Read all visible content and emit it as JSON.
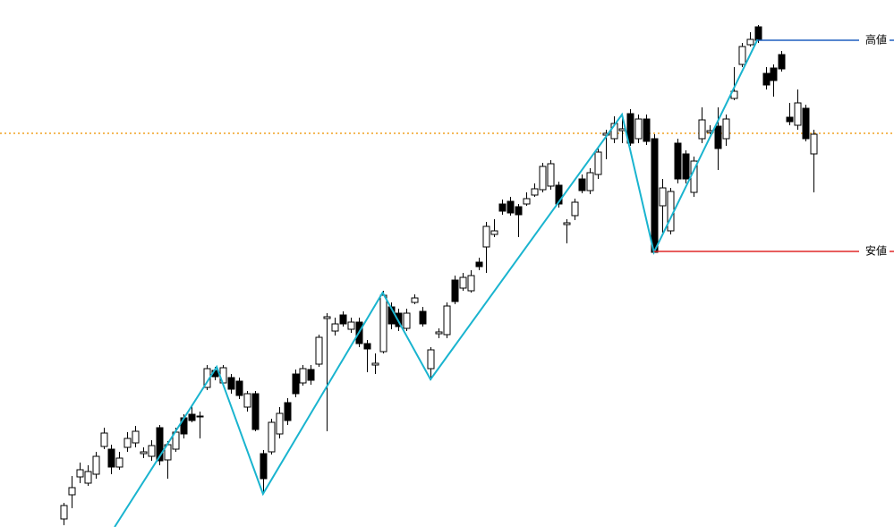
{
  "chart_data": {
    "type": "candlestick",
    "ylim": [
      0,
      589
    ],
    "up_color": "#ffffff",
    "down_color": "#000000",
    "ohlc": [
      [
        9,
        27,
        2,
        24
      ],
      [
        36,
        57,
        21,
        44
      ],
      [
        56,
        72,
        49,
        64
      ],
      [
        49,
        69,
        46,
        62
      ],
      [
        59,
        84,
        54,
        79
      ],
      [
        90,
        111,
        87,
        105
      ],
      [
        87,
        92,
        59,
        67
      ],
      [
        67,
        84,
        64,
        77
      ],
      [
        89,
        106,
        84,
        99
      ],
      [
        94,
        113,
        89,
        107
      ],
      [
        82,
        89,
        77,
        84
      ],
      [
        79,
        97,
        74,
        91
      ],
      [
        111,
        114,
        69,
        74
      ],
      [
        75,
        96,
        54,
        92
      ],
      [
        87,
        111,
        84,
        106
      ],
      [
        122,
        126,
        99,
        104
      ],
      [
        126,
        137,
        117,
        119
      ],
      [
        124,
        129,
        99,
        124
      ],
      [
        156,
        181,
        153,
        177
      ],
      [
        175,
        179,
        164,
        168
      ],
      [
        161,
        181,
        158,
        178
      ],
      [
        167,
        171,
        149,
        154
      ],
      [
        163,
        167,
        143,
        147
      ],
      [
        134,
        152,
        129,
        149
      ],
      [
        149,
        152,
        107,
        109
      ],
      [
        82,
        86,
        37,
        54
      ],
      [
        84,
        121,
        81,
        117
      ],
      [
        104,
        134,
        99,
        127
      ],
      [
        139,
        144,
        114,
        119
      ],
      [
        171,
        176,
        145,
        149
      ],
      [
        161,
        181,
        158,
        177
      ],
      [
        176,
        181,
        159,
        164
      ],
      [
        182,
        215,
        179,
        212
      ],
      [
        233,
        239,
        107,
        235
      ],
      [
        219,
        234,
        214,
        227
      ],
      [
        237,
        241,
        224,
        227
      ],
      [
        221,
        234,
        217,
        229
      ],
      [
        229,
        234,
        201,
        205
      ],
      [
        205,
        209,
        173,
        199
      ],
      [
        181,
        194,
        171,
        183
      ],
      [
        196,
        264,
        194,
        259
      ],
      [
        246,
        251,
        221,
        227
      ],
      [
        239,
        244,
        219,
        224
      ],
      [
        222,
        244,
        219,
        239
      ],
      [
        251,
        260,
        249,
        256
      ],
      [
        241,
        246,
        224,
        227
      ],
      [
        177,
        201,
        164,
        198
      ],
      [
        216,
        222,
        211,
        218
      ],
      [
        215,
        251,
        211,
        247
      ],
      [
        276,
        281,
        249,
        252
      ],
      [
        267,
        284,
        264,
        279
      ],
      [
        264,
        287,
        262,
        281
      ],
      [
        296,
        301,
        287,
        291
      ],
      [
        313,
        341,
        284,
        336
      ],
      [
        327,
        344,
        324,
        331
      ],
      [
        361,
        366,
        349,
        353
      ],
      [
        364,
        369,
        348,
        351
      ],
      [
        358,
        361,
        324,
        349
      ],
      [
        361,
        374,
        359,
        367
      ],
      [
        371,
        384,
        369,
        378
      ],
      [
        377,
        407,
        374,
        403
      ],
      [
        381,
        410,
        377,
        406
      ],
      [
        382,
        386,
        357,
        361
      ],
      [
        338,
        344,
        317,
        340
      ],
      [
        348,
        367,
        343,
        363
      ],
      [
        389,
        394,
        373,
        376
      ],
      [
        376,
        401,
        372,
        396
      ],
      [
        394,
        423,
        389,
        419
      ],
      [
        438,
        444,
        411,
        440
      ],
      [
        434,
        459,
        429,
        451
      ],
      [
        443,
        461,
        429,
        445
      ],
      [
        462,
        467,
        426,
        429
      ],
      [
        434,
        461,
        429,
        456
      ],
      [
        456,
        461,
        427,
        431
      ],
      [
        434,
        439,
        307,
        307
      ],
      [
        359,
        389,
        329,
        379
      ],
      [
        331,
        379,
        327,
        375
      ],
      [
        429,
        434,
        384,
        389
      ],
      [
        417,
        421,
        384,
        389
      ],
      [
        374,
        414,
        369,
        409
      ],
      [
        434,
        469,
        429,
        455
      ],
      [
        441,
        449,
        439,
        443
      ],
      [
        448,
        469,
        399,
        423
      ],
      [
        434,
        461,
        426,
        456
      ],
      [
        479,
        514,
        477,
        487
      ],
      [
        517,
        541,
        514,
        537
      ],
      [
        539,
        553,
        537,
        545
      ],
      [
        559,
        561,
        541,
        544
      ],
      [
        507,
        514,
        489,
        494
      ],
      [
        513,
        517,
        481,
        499
      ],
      [
        528,
        532,
        509,
        512
      ],
      [
        458,
        474,
        449,
        453
      ],
      [
        449,
        489,
        444,
        474
      ],
      [
        468,
        472,
        431,
        434
      ],
      [
        417,
        444,
        374,
        439
      ]
    ],
    "zigzag": {
      "color": "#1ab4cf",
      "x": [
        6.4,
        19.2,
        25,
        40,
        46,
        70,
        74,
        87
      ],
      "values": [
        0,
        179,
        37,
        262,
        165,
        461,
        307,
        545
      ]
    },
    "high_line": {
      "label": "高値",
      "value": 544,
      "start": 87,
      "color": "#1f5fbf"
    },
    "low_line": {
      "label": "安値",
      "value": 308,
      "start": 74,
      "color": "#e02828"
    },
    "price_line": {
      "value": 440,
      "color": "#f0a020"
    }
  }
}
